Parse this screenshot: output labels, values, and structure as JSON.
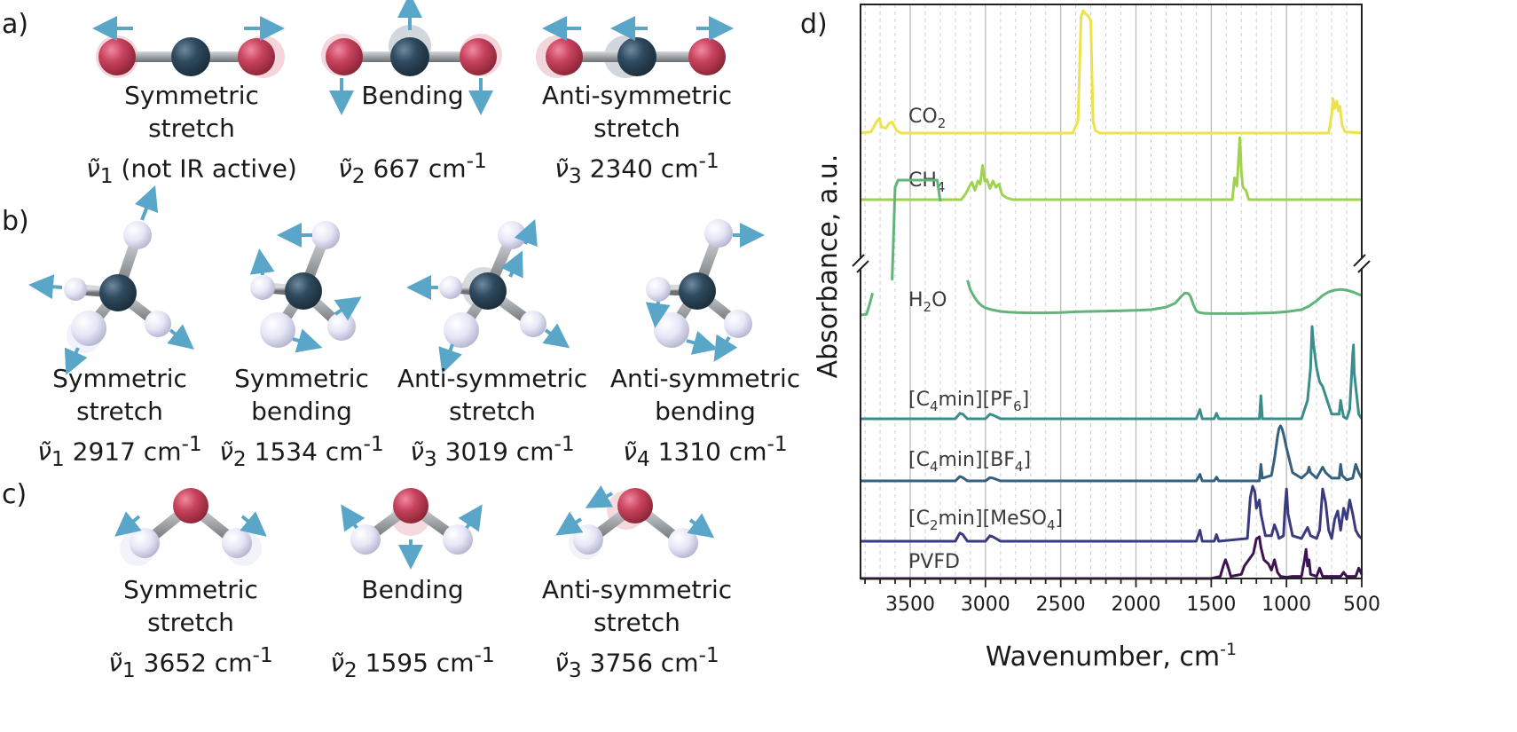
{
  "panels": {
    "a": {
      "letter": "a)",
      "modes": [
        {
          "line1": "Symmetric",
          "line2": "stretch",
          "sym": "ν̃",
          "sub": "1",
          "value": " (not IR active)",
          "sup": ""
        },
        {
          "line1": "Bending",
          "line2": "",
          "sym": "ν̃",
          "sub": "2",
          "value": " 667 cm",
          "sup": "-1"
        },
        {
          "line1": "Anti-symmetric",
          "line2": "stretch",
          "sym": "ν̃",
          "sub": "3",
          "value": " 2340 cm",
          "sup": "-1"
        }
      ]
    },
    "b": {
      "letter": "b)",
      "modes": [
        {
          "line1": "Symmetric",
          "line2": "stretch",
          "sym": "ν̃",
          "sub": "1",
          "value": " 2917 cm",
          "sup": "-1"
        },
        {
          "line1": "Symmetric",
          "line2": "bending",
          "sym": "ν̃",
          "sub": "2",
          "value": " 1534 cm",
          "sup": "-1"
        },
        {
          "line1": "Anti-symmetric",
          "line2": "stretch",
          "sym": "ν̃",
          "sub": "3",
          "value": " 3019 cm",
          "sup": "-1"
        },
        {
          "line1": "Anti-symmetric",
          "line2": "bending",
          "sym": "ν̃",
          "sub": "4",
          "value": " 1310 cm",
          "sup": "-1"
        }
      ]
    },
    "c": {
      "letter": "c)",
      "modes": [
        {
          "line1": "Symmetric",
          "line2": "stretch",
          "sym": "ν̃",
          "sub": "1",
          "value": " 3652 cm",
          "sup": "-1"
        },
        {
          "line1": "Bending",
          "line2": "",
          "sym": "ν̃",
          "sub": "2",
          "value": " 1595 cm",
          "sup": "-1"
        },
        {
          "line1": "Anti-symmetric",
          "line2": "stretch",
          "sym": "ν̃",
          "sub": "3",
          "value": " 3756 cm",
          "sup": "-1"
        }
      ]
    },
    "d": {
      "letter": "d)"
    }
  },
  "colors": {
    "carbon": "#2f4a5e",
    "oxygen": "#c8435e",
    "hydrogen": "#e6e6f7",
    "bond": "#9fa3a6",
    "arrow": "#5aa6c9"
  },
  "chart_data": {
    "type": "line",
    "xlabel": "Wavenumber, cm",
    "xlabel_sup": "-1",
    "ylabel": "Absorbance, a.u.",
    "xlim": [
      3830,
      500
    ],
    "x_reversed": true,
    "xticks": [
      3500,
      3000,
      2500,
      2000,
      1500,
      1000,
      500
    ],
    "grid": true,
    "axis_break": true,
    "series": [
      {
        "name": "CO",
        "sub": "2",
        "after": "",
        "color": "#eee24a",
        "x": [
          3830,
          3760,
          3720,
          3705,
          3690,
          3660,
          3640,
          3620,
          3590,
          3560,
          2420,
          2385,
          2365,
          2350,
          2340,
          2320,
          2300,
          2285,
          2270,
          2240,
          720,
          700,
          690,
          680,
          667,
          655,
          645,
          630,
          610,
          500
        ],
        "y": [
          0.0,
          0.01,
          0.1,
          0.12,
          0.05,
          0.04,
          0.08,
          0.09,
          0.02,
          0.0,
          0.0,
          0.1,
          0.95,
          1.0,
          0.98,
          0.96,
          0.92,
          0.1,
          0.02,
          0.0,
          0.0,
          0.15,
          0.28,
          0.2,
          0.26,
          0.18,
          0.22,
          0.06,
          0.01,
          0.0
        ]
      },
      {
        "name": "CH",
        "sub": "4",
        "after": "",
        "color": "#9fd24e",
        "x": [
          3830,
          3160,
          3130,
          3110,
          3090,
          3070,
          3050,
          3035,
          3019,
          3005,
          2990,
          2970,
          2950,
          2930,
          2910,
          2890,
          2860,
          2820,
          1360,
          1345,
          1330,
          1320,
          1310,
          1300,
          1290,
          1270,
          1250,
          500
        ],
        "y": [
          0.0,
          0.0,
          0.1,
          0.2,
          0.28,
          0.15,
          0.3,
          0.25,
          0.55,
          0.3,
          0.32,
          0.18,
          0.3,
          0.2,
          0.25,
          0.08,
          0.03,
          0.0,
          0.0,
          0.35,
          0.22,
          0.6,
          1.0,
          0.45,
          0.2,
          0.15,
          0.0,
          0.0
        ]
      },
      {
        "name": "H",
        "sub": "2",
        "after": "O",
        "color": "#62b47a",
        "x": [
          3830,
          3790,
          3770,
          3750,
          3720,
          3700,
          3680,
          3660,
          3640,
          3620,
          3600,
          3580,
          3560,
          3540,
          3520,
          3500,
          3480,
          3460,
          3440,
          3420,
          3400,
          3380,
          3360,
          3340,
          3320,
          3300,
          3280,
          3260,
          3240,
          3220,
          3200,
          3180,
          3160,
          3140,
          3120,
          3100,
          3080,
          3060,
          3040,
          3020,
          3000,
          2950,
          2900,
          2850,
          2800,
          2700,
          2600,
          2500,
          2400,
          2300,
          2200,
          2100,
          2000,
          1900,
          1800,
          1740,
          1700,
          1675,
          1650,
          1635,
          1620,
          1600,
          1580,
          1550,
          1500,
          1400,
          1300,
          1200,
          1100,
          1000,
          900,
          850,
          800,
          760,
          720,
          680,
          640,
          600,
          560,
          520,
          500
        ],
        "y": [
          0.0,
          0.02,
          0.3,
          0.62,
          null,
          null,
          null,
          null,
          null,
          0.98,
          3.6,
          3.8,
          3.8,
          3.8,
          3.8,
          3.8,
          3.8,
          3.8,
          3.8,
          3.8,
          3.8,
          3.8,
          3.8,
          3.8,
          3.8,
          3.2,
          null,
          null,
          null,
          null,
          null,
          null,
          null,
          null,
          0.98,
          0.7,
          0.55,
          0.42,
          0.32,
          0.25,
          0.2,
          0.14,
          0.1,
          0.08,
          0.07,
          0.06,
          0.06,
          0.07,
          0.09,
          0.1,
          0.11,
          0.12,
          0.13,
          0.15,
          0.22,
          0.33,
          0.52,
          0.62,
          0.6,
          0.5,
          0.3,
          0.12,
          0.07,
          0.05,
          0.04,
          0.04,
          0.04,
          0.05,
          0.06,
          0.09,
          0.15,
          0.25,
          0.4,
          0.55,
          0.65,
          0.7,
          0.72,
          0.7,
          0.65,
          0.58,
          0.55
        ]
      },
      {
        "name": "[C",
        "sub": "4",
        "after": "min][PF",
        "sub2": "6",
        "after2": "]",
        "color": "#3b8d8b",
        "x": [
          3830,
          3200,
          3170,
          3150,
          3120,
          3000,
          2970,
          2950,
          2900,
          1600,
          1575,
          1560,
          1480,
          1465,
          1450,
          1180,
          1170,
          1160,
          900,
          860,
          840,
          830,
          820,
          800,
          780,
          760,
          740,
          700,
          650,
          640,
          630,
          620,
          600,
          580,
          560,
          555,
          550,
          520,
          500
        ],
        "y": [
          0.0,
          0.0,
          0.06,
          0.05,
          0.0,
          0.0,
          0.05,
          0.04,
          0.0,
          0.0,
          0.1,
          0.0,
          0.0,
          0.06,
          0.0,
          0.0,
          0.25,
          0.0,
          0.0,
          0.2,
          0.55,
          1.0,
          0.8,
          0.55,
          0.4,
          0.35,
          0.25,
          0.05,
          0.05,
          0.2,
          0.1,
          0.02,
          0.0,
          0.1,
          0.7,
          0.8,
          0.5,
          0.05,
          0.0
        ]
      },
      {
        "name": "[C",
        "sub": "4",
        "after": "min][BF",
        "sub2": "4",
        "after2": "]",
        "color": "#35607f",
        "x": [
          3830,
          3200,
          3170,
          3150,
          3120,
          3000,
          2970,
          2950,
          2900,
          1600,
          1575,
          1560,
          1480,
          1465,
          1450,
          1180,
          1170,
          1160,
          1100,
          1080,
          1060,
          1050,
          1040,
          1030,
          1020,
          1000,
          960,
          900,
          860,
          850,
          840,
          800,
          780,
          760,
          740,
          700,
          650,
          640,
          630,
          600,
          560,
          540,
          520,
          500
        ],
        "y": [
          0.0,
          0.0,
          0.08,
          0.06,
          0.0,
          0.0,
          0.06,
          0.05,
          0.0,
          0.0,
          0.12,
          0.0,
          0.0,
          0.07,
          0.0,
          0.0,
          0.3,
          0.05,
          0.1,
          0.4,
          0.8,
          0.95,
          1.0,
          0.95,
          0.85,
          0.6,
          0.15,
          0.05,
          0.15,
          0.25,
          0.15,
          0.05,
          0.15,
          0.25,
          0.15,
          0.05,
          0.05,
          0.3,
          0.1,
          0.02,
          0.05,
          0.3,
          0.15,
          0.05
        ]
      },
      {
        "name": "[C",
        "sub": "2",
        "after": "min][MeSO",
        "sub2": "4",
        "after2": "]",
        "color": "#3a3a7e",
        "x": [
          3830,
          3200,
          3170,
          3150,
          3120,
          3000,
          2970,
          2950,
          2900,
          1600,
          1575,
          1560,
          1480,
          1465,
          1450,
          1260,
          1240,
          1225,
          1210,
          1200,
          1180,
          1170,
          1140,
          1100,
          1080,
          1060,
          1050,
          1020,
          1010,
          1000,
          990,
          960,
          900,
          860,
          840,
          800,
          780,
          760,
          740,
          720,
          700,
          680,
          660,
          640,
          620,
          600,
          580,
          560,
          540,
          520,
          500
        ],
        "y": [
          0.0,
          0.0,
          0.15,
          0.12,
          0.0,
          0.0,
          0.1,
          0.08,
          0.0,
          0.0,
          0.2,
          0.0,
          0.0,
          0.12,
          0.0,
          0.05,
          0.8,
          1.0,
          0.9,
          0.6,
          0.75,
          0.5,
          0.1,
          0.1,
          0.3,
          0.15,
          0.05,
          0.1,
          0.6,
          0.95,
          0.5,
          0.1,
          0.05,
          0.25,
          0.1,
          0.05,
          0.2,
          0.95,
          0.7,
          0.2,
          0.05,
          0.4,
          0.55,
          0.2,
          0.6,
          0.4,
          0.75,
          0.5,
          0.2,
          0.1,
          0.05
        ]
      },
      {
        "name": "PVFD",
        "sub": "",
        "after": "",
        "color": "#3d1450",
        "x": [
          3830,
          1500,
          1440,
          1420,
          1405,
          1390,
          1370,
          1300,
          1280,
          1220,
          1200,
          1180,
          1170,
          1150,
          1120,
          1100,
          1080,
          1070,
          1060,
          1040,
          1000,
          960,
          900,
          880,
          870,
          860,
          850,
          840,
          800,
          780,
          760,
          740,
          700,
          640,
          620,
          600,
          540,
          520,
          500
        ],
        "y": [
          0.0,
          0.0,
          0.05,
          0.3,
          0.45,
          0.3,
          0.05,
          0.1,
          0.3,
          0.6,
          0.95,
          1.0,
          0.75,
          0.45,
          0.35,
          0.2,
          0.45,
          0.3,
          0.15,
          0.05,
          0.03,
          0.05,
          0.05,
          0.45,
          0.7,
          0.3,
          0.45,
          0.1,
          0.05,
          0.25,
          0.05,
          0.05,
          0.05,
          0.05,
          0.15,
          0.05,
          0.05,
          0.25,
          0.1
        ]
      }
    ]
  }
}
